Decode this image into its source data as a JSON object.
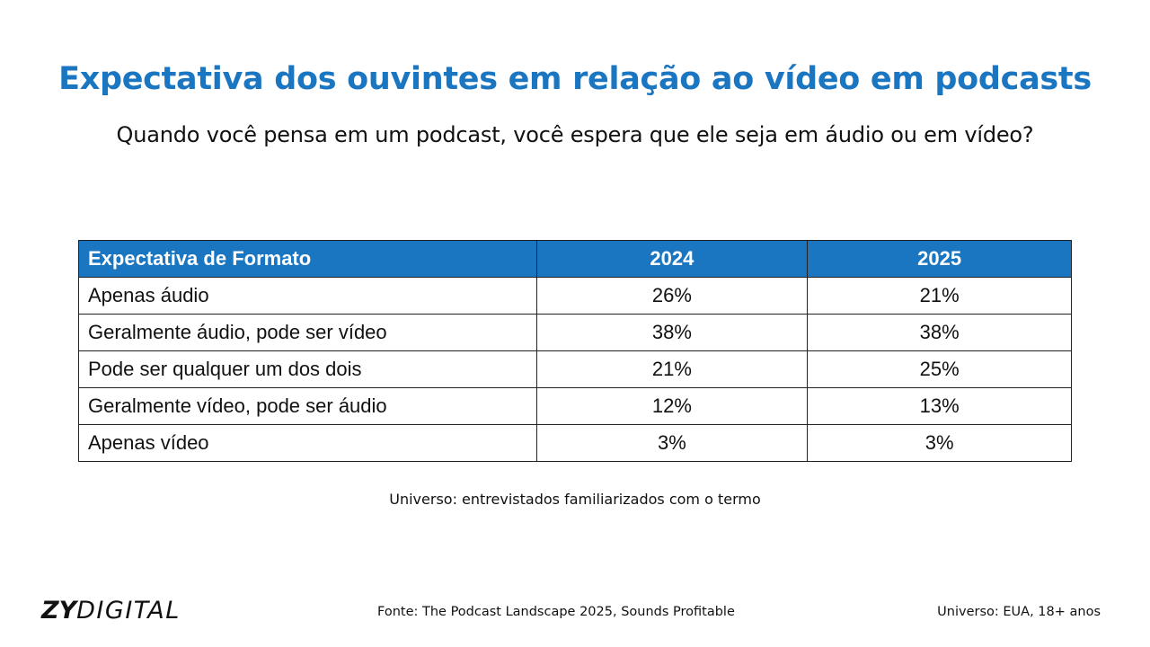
{
  "title": "Expectativa dos ouvintes em relação ao vídeo em podcasts",
  "subtitle": "Quando você pensa em um podcast, você espera que ele seja em áudio ou em vídeo?",
  "colors": {
    "accent": "#1a76c1",
    "header_text": "#ffffff",
    "text": "#111111"
  },
  "chart_data": {
    "type": "table",
    "columns": [
      "Expectativa de Formato",
      "2024",
      "2025"
    ],
    "rows": [
      {
        "label": "Apenas áudio",
        "values": [
          "26%",
          "21%"
        ]
      },
      {
        "label": "Geralmente áudio, pode ser vídeo",
        "values": [
          "38%",
          "38%"
        ]
      },
      {
        "label": "Pode ser qualquer um dos dois",
        "values": [
          "21%",
          "25%"
        ]
      },
      {
        "label": "Geralmente vídeo, pode ser áudio",
        "values": [
          "12%",
          "13%"
        ]
      },
      {
        "label": "Apenas vídeo",
        "values": [
          "3%",
          "3%"
        ]
      }
    ]
  },
  "universe_note": "Universo: entrevistados familiarizados com o termo",
  "footer": {
    "logo_bold": "ZY",
    "logo_light": "DIGITAL",
    "source": "Fonte: The Podcast Landscape 2025, Sounds Profitable",
    "universe": "Universo: EUA, 18+ anos"
  }
}
